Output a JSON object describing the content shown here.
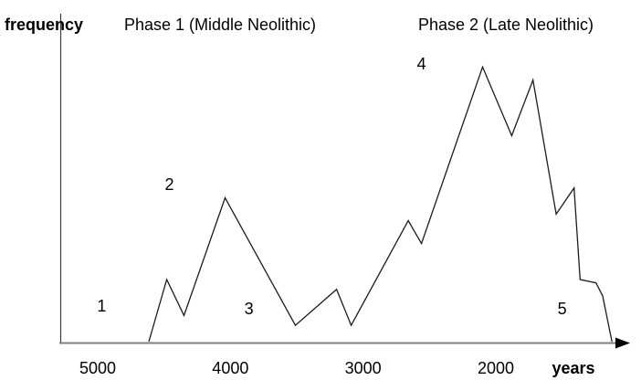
{
  "chart_data": {
    "type": "line",
    "title": "",
    "ylabel": "frequency",
    "xlabel": "years",
    "x_ticks": [
      5000,
      4000,
      3000,
      2000
    ],
    "x_axis_direction": "years decrease from left (5000) to right (past 2000)",
    "y_axis": {
      "range": [
        0,
        100
      ],
      "tick_labels_shown": false,
      "unit": "relative frequency"
    },
    "grid": false,
    "legend": false,
    "background_color": "#ffffff",
    "line_color": "#1c1c1c",
    "axis_color": "#808080",
    "phase_labels": [
      "Phase 1 (Middle Neolithic)",
      "Phase 2 (Late Neolithic)"
    ],
    "series": [
      {
        "name": "frequency",
        "points_year_frequency": [
          [
            4615,
            0
          ],
          [
            4480,
            19
          ],
          [
            4350,
            8
          ],
          [
            4040,
            44
          ],
          [
            3510,
            5
          ],
          [
            3200,
            16
          ],
          [
            3090,
            5
          ],
          [
            2660,
            37
          ],
          [
            2560,
            30
          ],
          [
            2100,
            84
          ],
          [
            1880,
            63
          ],
          [
            1720,
            80
          ],
          [
            1545,
            39
          ],
          [
            1410,
            47
          ],
          [
            1365,
            19
          ],
          [
            1245,
            18
          ],
          [
            1195,
            14
          ],
          [
            1125,
            0
          ]
        ]
      }
    ],
    "annotations": [
      {
        "label": "1",
        "year": 4970,
        "frequency": 11
      },
      {
        "label": "2",
        "year": 4460,
        "frequency": 48
      },
      {
        "label": "3",
        "year": 3860,
        "frequency": 10
      },
      {
        "label": "4",
        "year": 2560,
        "frequency": 85
      },
      {
        "label": "5",
        "year": 1500,
        "frequency": 10
      }
    ]
  }
}
